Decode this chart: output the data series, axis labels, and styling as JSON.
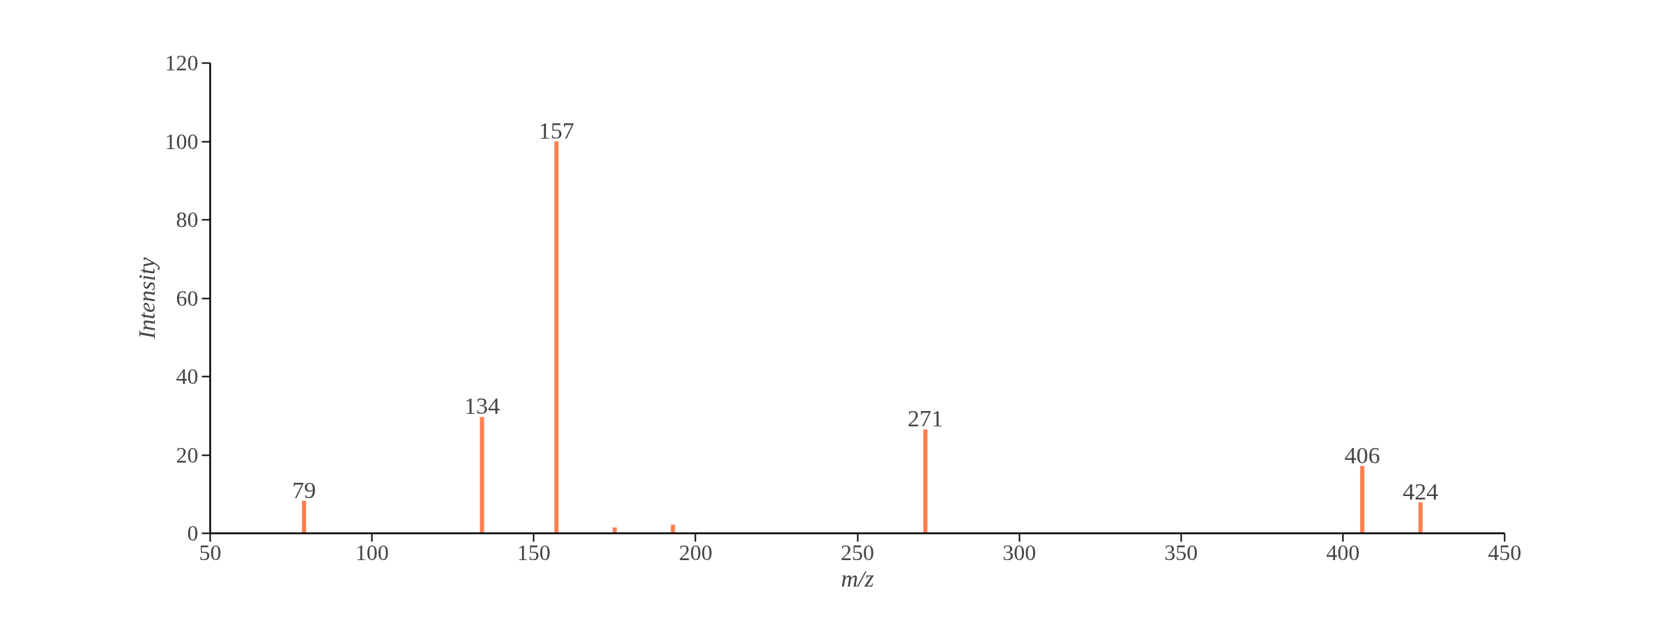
{
  "chart_data": {
    "type": "bar",
    "xlabel": "m/z",
    "ylabel": "Intensity",
    "x": [
      79,
      134,
      157,
      175,
      193,
      271,
      406,
      424
    ],
    "values": [
      8.3,
      29.7,
      100,
      1.5,
      2.2,
      26.5,
      17.2,
      7.9
    ],
    "annotations": [
      {
        "text": "79",
        "x": 79,
        "y": 8.3
      },
      {
        "text": "134",
        "x": 134,
        "y": 29.7
      },
      {
        "text": "157",
        "x": 157,
        "y": 100
      },
      {
        "text": "271",
        "x": 271,
        "y": 26.5
      },
      {
        "text": "406",
        "x": 406,
        "y": 17.2
      },
      {
        "text": "424",
        "x": 424,
        "y": 7.9
      }
    ],
    "color": "#ff7f50",
    "xlim": [
      50,
      450
    ],
    "xticks": [
      50,
      100,
      150,
      200,
      250,
      300,
      350,
      400,
      450
    ],
    "ylim": [
      0,
      120
    ],
    "yticks": [
      0,
      20,
      40,
      60,
      80,
      100,
      120
    ],
    "grid": false
  }
}
